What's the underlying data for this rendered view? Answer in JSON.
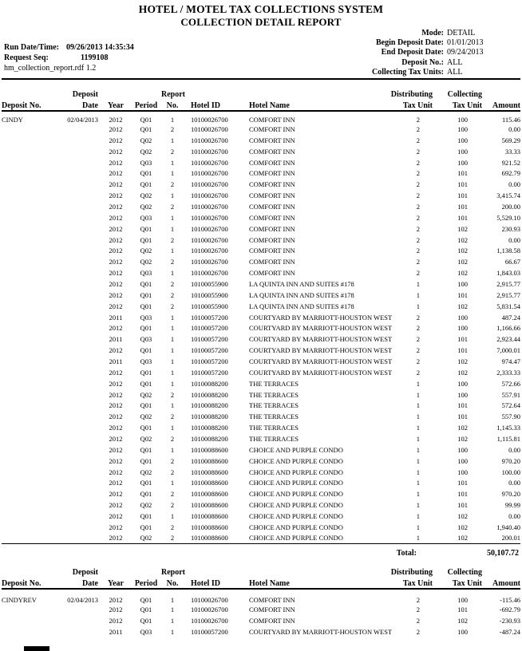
{
  "page": {
    "title": "HOTEL / MOTEL TAX COLLECTIONS SYSTEM",
    "subtitle": "COLLECTION DETAIL REPORT"
  },
  "meta_left": {
    "run_label": "Run Date/Time:",
    "run_value": "09/26/2013 14:35:34",
    "seq_label": "Request Seq:",
    "seq_value": "1199108",
    "file_ref": "hm_collection_report.rdf 1.2"
  },
  "meta_right": {
    "mode_label": "Mode:",
    "mode_value": "DETAIL",
    "begin_label": "Begin Deposit Date:",
    "begin_value": "01/01/2013",
    "end_label": "End Deposit Date:",
    "end_value": "09/24/2013",
    "deposit_label": "Deposit No.:",
    "deposit_value": "ALL",
    "units_label": "Collecting Tax Units:",
    "units_value": "ALL"
  },
  "columns": {
    "deposit_no": "Deposit No.",
    "deposit_date_l1": "Deposit",
    "deposit_date_l2": "Date",
    "year": "Year",
    "period": "Period",
    "report_no_l1": "Report",
    "report_no_l2": "No.",
    "hotel_id": "Hotel ID",
    "hotel_name": "Hotel Name",
    "distributing_l1": "Distributing",
    "distributing_l2": "Tax Unit",
    "collecting_l1": "Collecting",
    "collecting_l2": "Tax Unit",
    "amount": "Amount"
  },
  "sections": [
    {
      "deposit_no": "CINDY",
      "total_label": "Total:",
      "total_value": "50,107.72",
      "rows": [
        [
          "CINDY",
          "02/04/2013",
          "2012",
          "Q01",
          "1",
          "10100026700",
          "COMFORT INN",
          "2",
          "100",
          "115.46"
        ],
        [
          "",
          "",
          "2012",
          "Q01",
          "2",
          "10100026700",
          "COMFORT INN",
          "2",
          "100",
          "0.00"
        ],
        [
          "",
          "",
          "2012",
          "Q02",
          "1",
          "10100026700",
          "COMFORT INN",
          "2",
          "100",
          "569.29"
        ],
        [
          "",
          "",
          "2012",
          "Q02",
          "2",
          "10100026700",
          "COMFORT INN",
          "2",
          "100",
          "33.33"
        ],
        [
          "",
          "",
          "2012",
          "Q03",
          "1",
          "10100026700",
          "COMFORT INN",
          "2",
          "100",
          "921.52"
        ],
        [
          "",
          "",
          "2012",
          "Q01",
          "1",
          "10100026700",
          "COMFORT INN",
          "2",
          "101",
          "692.79"
        ],
        [
          "",
          "",
          "2012",
          "Q01",
          "2",
          "10100026700",
          "COMFORT INN",
          "2",
          "101",
          "0.00"
        ],
        [
          "",
          "",
          "2012",
          "Q02",
          "1",
          "10100026700",
          "COMFORT INN",
          "2",
          "101",
          "3,415.74"
        ],
        [
          "",
          "",
          "2012",
          "Q02",
          "2",
          "10100026700",
          "COMFORT INN",
          "2",
          "101",
          "200.00"
        ],
        [
          "",
          "",
          "2012",
          "Q03",
          "1",
          "10100026700",
          "COMFORT INN",
          "2",
          "101",
          "5,529.10"
        ],
        [
          "",
          "",
          "2012",
          "Q01",
          "1",
          "10100026700",
          "COMFORT INN",
          "2",
          "102",
          "230.93"
        ],
        [
          "",
          "",
          "2012",
          "Q01",
          "2",
          "10100026700",
          "COMFORT INN",
          "2",
          "102",
          "0.00"
        ],
        [
          "",
          "",
          "2012",
          "Q02",
          "1",
          "10100026700",
          "COMFORT INN",
          "2",
          "102",
          "1,138.58"
        ],
        [
          "",
          "",
          "2012",
          "Q02",
          "2",
          "10100026700",
          "COMFORT INN",
          "2",
          "102",
          "66.67"
        ],
        [
          "",
          "",
          "2012",
          "Q03",
          "1",
          "10100026700",
          "COMFORT INN",
          "2",
          "102",
          "1,843.03"
        ],
        [
          "",
          "",
          "2012",
          "Q01",
          "2",
          "10100055900",
          "LA QUINTA INN AND SUITES #178",
          "1",
          "100",
          "2,915.77"
        ],
        [
          "",
          "",
          "2012",
          "Q01",
          "2",
          "10100055900",
          "LA QUINTA INN AND SUITES #178",
          "1",
          "101",
          "2,915.77"
        ],
        [
          "",
          "",
          "2012",
          "Q01",
          "2",
          "10100055900",
          "LA QUINTA INN AND SUITES #178",
          "1",
          "102",
          "5,831.54"
        ],
        [
          "",
          "",
          "2011",
          "Q03",
          "1",
          "10100057200",
          "COURTYARD BY MARRIOTT-HOUSTON WEST",
          "2",
          "100",
          "487.24"
        ],
        [
          "",
          "",
          "2012",
          "Q01",
          "1",
          "10100057200",
          "COURTYARD BY MARRIOTT-HOUSTON WEST",
          "2",
          "100",
          "1,166.66"
        ],
        [
          "",
          "",
          "2011",
          "Q03",
          "1",
          "10100057200",
          "COURTYARD BY MARRIOTT-HOUSTON WEST",
          "2",
          "101",
          "2,923.44"
        ],
        [
          "",
          "",
          "2012",
          "Q01",
          "1",
          "10100057200",
          "COURTYARD BY MARRIOTT-HOUSTON WEST",
          "2",
          "101",
          "7,000.01"
        ],
        [
          "",
          "",
          "2011",
          "Q03",
          "1",
          "10100057200",
          "COURTYARD BY MARRIOTT-HOUSTON WEST",
          "2",
          "102",
          "974.47"
        ],
        [
          "",
          "",
          "2012",
          "Q01",
          "1",
          "10100057200",
          "COURTYARD BY MARRIOTT-HOUSTON WEST",
          "2",
          "102",
          "2,333.33"
        ],
        [
          "",
          "",
          "2012",
          "Q01",
          "1",
          "10100088200",
          "THE TERRACES",
          "1",
          "100",
          "572.66"
        ],
        [
          "",
          "",
          "2012",
          "Q02",
          "2",
          "10100088200",
          "THE TERRACES",
          "1",
          "100",
          "557.91"
        ],
        [
          "",
          "",
          "2012",
          "Q01",
          "1",
          "10100088200",
          "THE TERRACES",
          "1",
          "101",
          "572.64"
        ],
        [
          "",
          "",
          "2012",
          "Q02",
          "2",
          "10100088200",
          "THE TERRACES",
          "1",
          "101",
          "557.90"
        ],
        [
          "",
          "",
          "2012",
          "Q01",
          "1",
          "10100088200",
          "THE TERRACES",
          "1",
          "102",
          "1,145.33"
        ],
        [
          "",
          "",
          "2012",
          "Q02",
          "2",
          "10100088200",
          "THE TERRACES",
          "1",
          "102",
          "1,115.81"
        ],
        [
          "",
          "",
          "2012",
          "Q01",
          "1",
          "10100088600",
          "CHOICE AND PURPLE CONDO",
          "1",
          "100",
          "0.00"
        ],
        [
          "",
          "",
          "2012",
          "Q01",
          "2",
          "10100088600",
          "CHOICE AND PURPLE CONDO",
          "1",
          "100",
          "970.20"
        ],
        [
          "",
          "",
          "2012",
          "Q02",
          "2",
          "10100088600",
          "CHOICE AND PURPLE CONDO",
          "1",
          "100",
          "100.00"
        ],
        [
          "",
          "",
          "2012",
          "Q01",
          "1",
          "10100088600",
          "CHOICE AND PURPLE CONDO",
          "1",
          "101",
          "0.00"
        ],
        [
          "",
          "",
          "2012",
          "Q01",
          "2",
          "10100088600",
          "CHOICE AND PURPLE CONDO",
          "1",
          "101",
          "970.20"
        ],
        [
          "",
          "",
          "2012",
          "Q02",
          "2",
          "10100088600",
          "CHOICE AND PURPLE CONDO",
          "1",
          "101",
          "99.99"
        ],
        [
          "",
          "",
          "2012",
          "Q01",
          "1",
          "10100088600",
          "CHOICE AND PURPLE CONDO",
          "1",
          "102",
          "0.00"
        ],
        [
          "",
          "",
          "2012",
          "Q01",
          "2",
          "10100088600",
          "CHOICE AND PURPLE CONDO",
          "1",
          "102",
          "1,940.40"
        ],
        [
          "",
          "",
          "2012",
          "Q02",
          "2",
          "10100088600",
          "CHOICE AND PURPLE CONDO",
          "1",
          "102",
          "200.01"
        ]
      ]
    },
    {
      "deposit_no": "CINDYREV",
      "rows": [
        [
          "CINDYREV",
          "02/04/2013",
          "2012",
          "Q01",
          "1",
          "10100026700",
          "COMFORT INN",
          "2",
          "100",
          "-115.46"
        ],
        [
          "",
          "",
          "2012",
          "Q01",
          "1",
          "10100026700",
          "COMFORT INN",
          "2",
          "101",
          "-692.79"
        ],
        [
          "",
          "",
          "2012",
          "Q01",
          "1",
          "10100026700",
          "COMFORT INN",
          "2",
          "102",
          "-230.93"
        ],
        [
          "",
          "",
          "2011",
          "Q03",
          "1",
          "10100057200",
          "COURTYARD BY MARRIOTT-HOUSTON WEST",
          "2",
          "100",
          "-487.24"
        ]
      ]
    }
  ]
}
